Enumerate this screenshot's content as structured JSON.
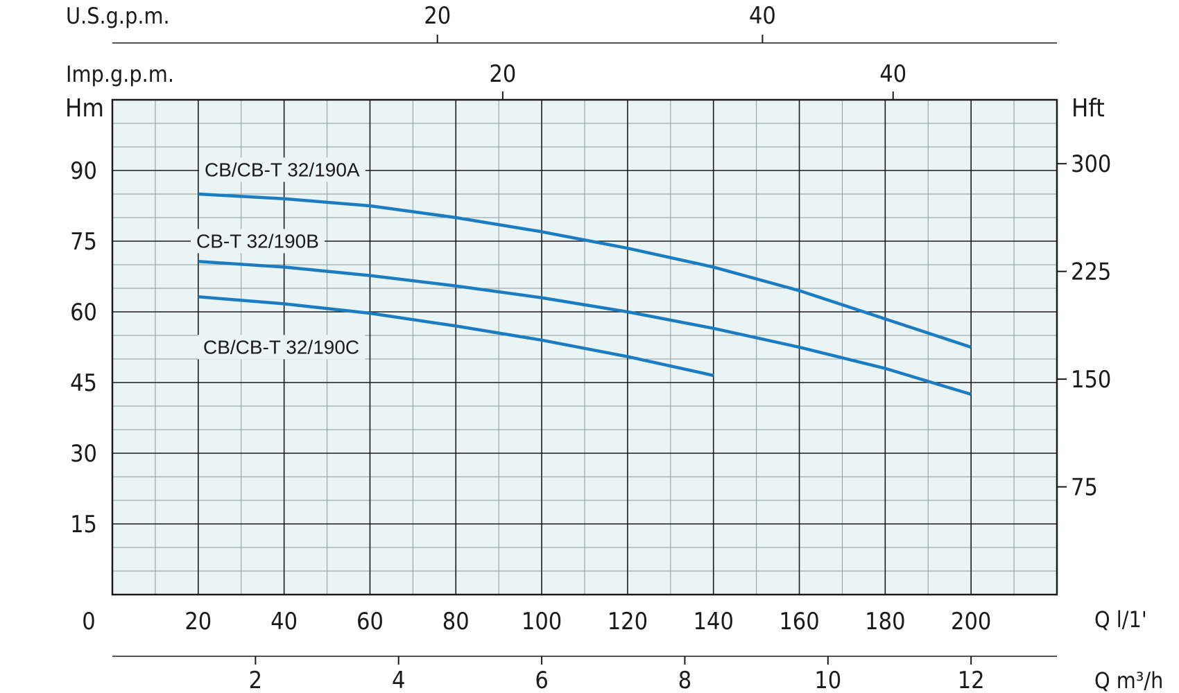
{
  "chart_data": {
    "type": "line",
    "x_unit_primary": "Q l/1'",
    "y_unit_left": "Hm",
    "y_unit_right": "Hft",
    "xlim": [
      0,
      220
    ],
    "ylim": [
      0,
      105
    ],
    "x_ticks": [
      0,
      20,
      40,
      60,
      80,
      100,
      120,
      140,
      160,
      180,
      200
    ],
    "x_tick_labels": [
      "0",
      "20",
      "40",
      "60",
      "80",
      "100",
      "120",
      "140",
      "160",
      "180",
      "200"
    ],
    "y_ticks": [
      15,
      30,
      45,
      60,
      75,
      90
    ],
    "y_tick_labels": [
      "15",
      "30",
      "45",
      "60",
      "75",
      "90"
    ],
    "right_axis": {
      "label": "Hft",
      "ticks": [
        75,
        150,
        225,
        300
      ],
      "tick_labels": [
        "75",
        "150",
        "225",
        "300"
      ],
      "factor": 3.2808
    },
    "top_axes": [
      {
        "label": "U.S.g.p.m.",
        "factor": 0.26417,
        "ticks": [
          20,
          40
        ],
        "tick_labels": [
          "20",
          "40"
        ]
      },
      {
        "label": "Imp.g.p.m.",
        "factor": 0.21997,
        "ticks": [
          20,
          40
        ],
        "tick_labels": [
          "20",
          "40"
        ]
      }
    ],
    "bottom_axis_2": {
      "label": "Q m³/h",
      "factor": 0.06,
      "ticks": [
        2,
        4,
        6,
        8,
        10,
        12
      ],
      "tick_labels": [
        "2",
        "4",
        "6",
        "8",
        "10",
        "12"
      ]
    },
    "grid": true,
    "series": [
      {
        "name": "CB/CB-T 32/190A",
        "x": [
          20,
          40,
          60,
          80,
          100,
          120,
          140,
          160,
          180,
          200
        ],
        "y": [
          85,
          84,
          82.5,
          80,
          77,
          73.5,
          69.5,
          64.5,
          58.5,
          52.5
        ]
      },
      {
        "name": "CB-T 32/190B",
        "x": [
          20,
          40,
          60,
          80,
          100,
          120,
          140,
          160,
          180,
          200
        ],
        "y": [
          70.7,
          69.5,
          67.7,
          65.5,
          63,
          60,
          56.5,
          52.5,
          48,
          42.5
        ]
      },
      {
        "name": "CB/CB-T 32/190C",
        "x": [
          20,
          40,
          60,
          80,
          100,
          120,
          140
        ],
        "y": [
          63.2,
          61.7,
          59.7,
          57,
          54,
          50.5,
          46.5
        ]
      }
    ],
    "colors": {
      "plot_background": "#eaf4f4",
      "curve": "#1b7cc2",
      "major_grid": "#1a1a1a",
      "minor_grid": "#8a9a9a",
      "frame": "#1a1a1a"
    }
  }
}
